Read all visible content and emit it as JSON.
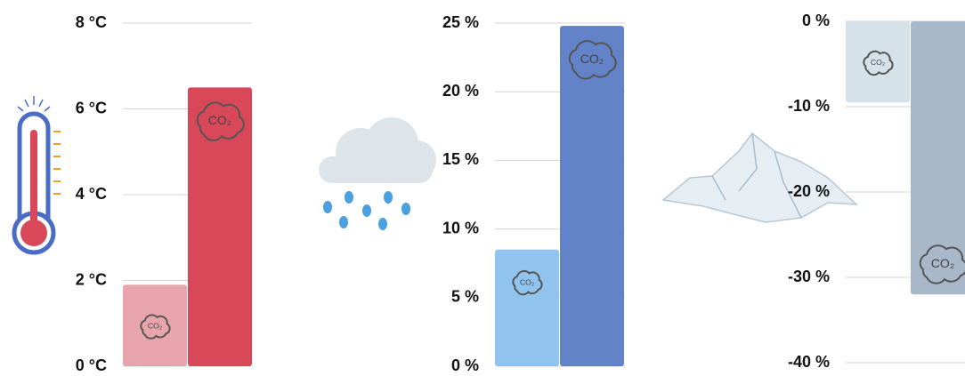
{
  "chart_data": [
    {
      "type": "bar",
      "categories": [
        null,
        null
      ],
      "values": [
        1.9,
        6.5
      ],
      "colors": [
        "#e8a4ab",
        "#d84858"
      ],
      "annotations": [
        "CO₂",
        "CO₂"
      ],
      "ylim": [
        0,
        8
      ],
      "yticks": [
        {
          "value": 0,
          "label": "0 °C"
        },
        {
          "value": 2,
          "label": "2 °C"
        },
        {
          "value": 4,
          "label": "4 °C"
        },
        {
          "value": 6,
          "label": "6 °C"
        },
        {
          "value": 8,
          "label": "8 °C"
        }
      ],
      "grid": true
    },
    {
      "type": "bar",
      "categories": [
        null,
        null
      ],
      "values": [
        8.5,
        24.8
      ],
      "colors": [
        "#90c4ee",
        "#6383c8"
      ],
      "annotations": [
        "CO₂",
        "CO₂"
      ],
      "ylim": [
        0,
        25
      ],
      "yticks": [
        {
          "value": 0,
          "label": "0 %"
        },
        {
          "value": 5,
          "label": "5 %"
        },
        {
          "value": 10,
          "label": "10 %"
        },
        {
          "value": 15,
          "label": "15 %"
        },
        {
          "value": 20,
          "label": "20 %"
        },
        {
          "value": 25,
          "label": "25 %"
        }
      ],
      "grid": true
    },
    {
      "type": "bar",
      "categories": [
        null,
        null
      ],
      "values": [
        -9.5,
        -32
      ],
      "colors": [
        "#d6e2ea",
        "#a8b8c8"
      ],
      "annotations": [
        "CO₂",
        "CO₂"
      ],
      "ylim": [
        -40,
        0
      ],
      "yticks": [
        {
          "value": 0,
          "label": "0 %"
        },
        {
          "value": -10,
          "label": "-10 %"
        },
        {
          "value": -20,
          "label": "-20 %"
        },
        {
          "value": -30,
          "label": "-30 %"
        },
        {
          "value": -40,
          "label": "-40 %"
        }
      ],
      "grid": true
    }
  ]
}
